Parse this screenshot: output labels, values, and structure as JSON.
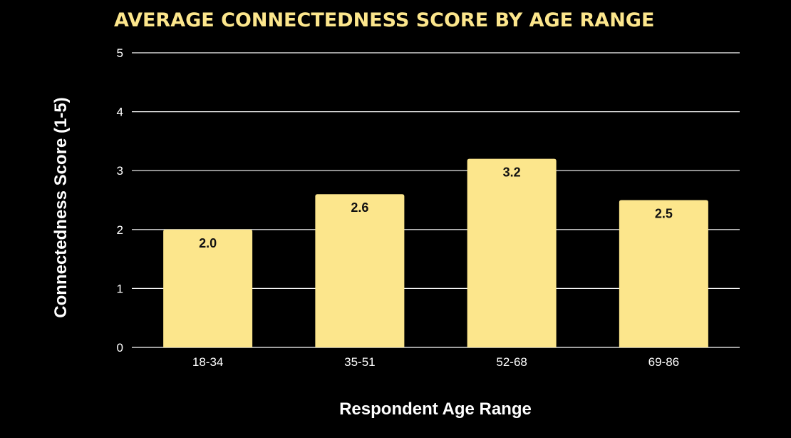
{
  "chart_data": {
    "type": "bar",
    "title": "AVERAGE CONNECTEDNESS SCORE BY AGE RANGE",
    "xlabel": "Respondent Age Range",
    "ylabel": "Connectedness Score (1-5)",
    "categories": [
      "18-34",
      "35-51",
      "52-68",
      "69-86"
    ],
    "values": [
      2.0,
      2.6,
      3.2,
      2.5
    ],
    "data_labels": [
      "2.0",
      "2.6",
      "3.2",
      "2.5"
    ],
    "ylim": [
      0,
      5
    ],
    "yticks": [
      0,
      1,
      2,
      3,
      4,
      5
    ],
    "grid": true,
    "legend": "none",
    "colors": {
      "background": "#000000",
      "bar": "#fce68c",
      "title": "#fce68c",
      "text": "#ffffff",
      "data_label": "#111111",
      "grid": "#ffffff"
    }
  }
}
